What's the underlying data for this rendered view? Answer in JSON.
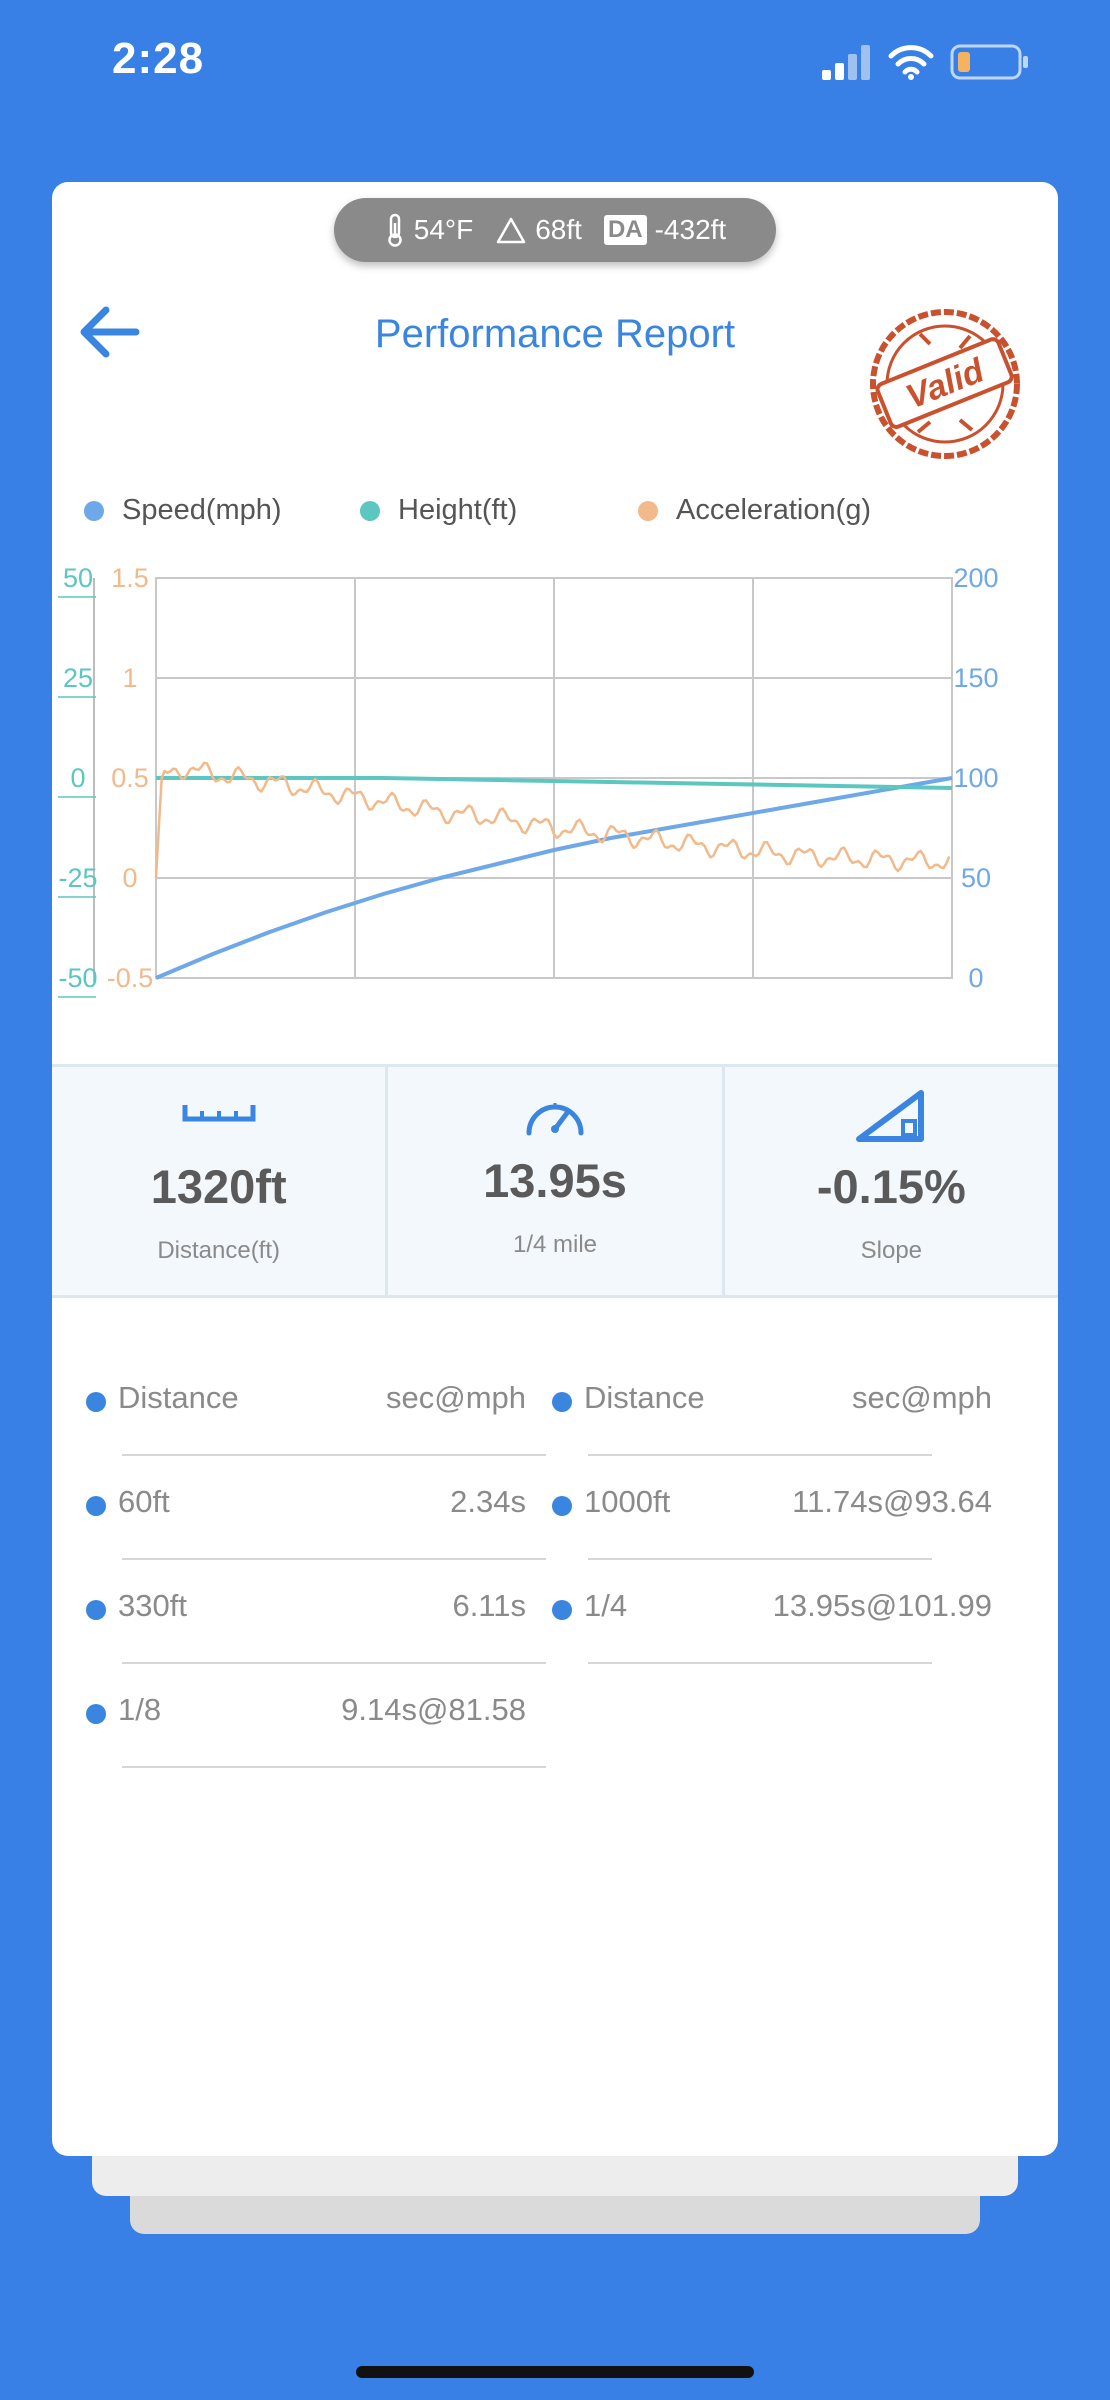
{
  "status_bar": {
    "time": "2:28"
  },
  "env": {
    "temperature": "54°F",
    "altitude": "68ft",
    "da_label": "DA",
    "density_altitude": "-432ft"
  },
  "header": {
    "title": "Performance Report",
    "stamp_text": "Valid"
  },
  "legend": [
    {
      "label": "Speed(mph)",
      "color": "#6FA8E8"
    },
    {
      "label": "Height(ft)",
      "color": "#5CC6C0"
    },
    {
      "label": "Acceleration(g)",
      "color": "#F2B98A"
    }
  ],
  "chart_data": {
    "type": "line",
    "y_axes": {
      "height_ticks": [
        "50",
        "25",
        "0",
        "-25",
        "-50"
      ],
      "acceleration_ticks": [
        "1.5",
        "1",
        "0.5",
        "0",
        "-0.5"
      ],
      "speed_ticks": [
        "200",
        "150",
        "100",
        "50",
        "0"
      ]
    },
    "ranges": {
      "height": [
        -50,
        50
      ],
      "acceleration": [
        -0.5,
        1.5
      ],
      "speed": [
        0,
        200
      ],
      "time": [
        0,
        14
      ]
    },
    "grid": true,
    "series": [
      {
        "name": "Speed(mph)",
        "axis": "speed",
        "color": "#6FA8E8",
        "x": [
          0,
          1,
          2,
          3,
          4,
          5,
          6,
          7,
          8,
          9,
          10,
          11,
          12,
          13,
          14
        ],
        "y": [
          0,
          12,
          23,
          33,
          42,
          50,
          57,
          64,
          70,
          75,
          80,
          85,
          90,
          95,
          100
        ]
      },
      {
        "name": "Height(ft)",
        "axis": "height",
        "color": "#5CC6C0",
        "x": [
          0,
          2,
          4,
          6,
          8,
          10,
          12,
          14
        ],
        "y": [
          0,
          0,
          0,
          -0.5,
          -1,
          -1.5,
          -2,
          -2.5
        ]
      },
      {
        "name": "Acceleration(g)",
        "axis": "acceleration",
        "color": "#F2B98A",
        "x": [
          0,
          0.1,
          0.5,
          1,
          2,
          3,
          4,
          5,
          6,
          7,
          8,
          9,
          10,
          11,
          12,
          13,
          14
        ],
        "y": [
          0,
          0.5,
          0.55,
          0.52,
          0.48,
          0.43,
          0.38,
          0.33,
          0.3,
          0.25,
          0.22,
          0.18,
          0.15,
          0.12,
          0.1,
          0.09,
          0.08
        ]
      }
    ]
  },
  "stats": [
    {
      "value": "1320ft",
      "label": "Distance(ft)",
      "icon": "ruler-icon"
    },
    {
      "value": "13.95s",
      "label": "1/4 mile",
      "icon": "speedometer-icon"
    },
    {
      "value": "-0.15%",
      "label": "Slope",
      "icon": "slope-icon"
    }
  ],
  "splits": {
    "header_name": "Distance",
    "header_value": "sec@mph",
    "left": [
      {
        "name": "60ft",
        "value": "2.34s"
      },
      {
        "name": "330ft",
        "value": "6.11s"
      },
      {
        "name": "1/8",
        "value": "9.14s@81.58"
      }
    ],
    "right": [
      {
        "name": "1000ft",
        "value": "11.74s@93.64"
      },
      {
        "name": "1/4",
        "value": "13.95s@101.99"
      }
    ]
  }
}
